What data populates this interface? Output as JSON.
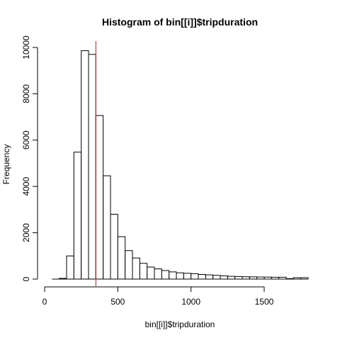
{
  "chart_data": {
    "type": "bar",
    "title": "Histogram of bin[[i]]$tripduration",
    "xlabel": "bin[[i]]$tripduration",
    "ylabel": "Frequency",
    "xlim": [
      0,
      1800
    ],
    "ylim": [
      0,
      10000
    ],
    "x_ticks": [
      0,
      500,
      1000,
      1500
    ],
    "y_ticks": [
      0,
      2000,
      4000,
      6000,
      8000,
      10000
    ],
    "bin_width": 50,
    "bins": [
      {
        "start": 50,
        "end": 100,
        "value": 0
      },
      {
        "start": 100,
        "end": 150,
        "value": 30
      },
      {
        "start": 150,
        "end": 200,
        "value": 1000
      },
      {
        "start": 200,
        "end": 250,
        "value": 5480
      },
      {
        "start": 250,
        "end": 300,
        "value": 9860
      },
      {
        "start": 300,
        "end": 350,
        "value": 9700
      },
      {
        "start": 350,
        "end": 400,
        "value": 7060
      },
      {
        "start": 400,
        "end": 450,
        "value": 4460
      },
      {
        "start": 450,
        "end": 500,
        "value": 2800
      },
      {
        "start": 500,
        "end": 550,
        "value": 1830
      },
      {
        "start": 550,
        "end": 600,
        "value": 1230
      },
      {
        "start": 600,
        "end": 650,
        "value": 910
      },
      {
        "start": 650,
        "end": 700,
        "value": 680
      },
      {
        "start": 700,
        "end": 750,
        "value": 520
      },
      {
        "start": 750,
        "end": 800,
        "value": 440
      },
      {
        "start": 800,
        "end": 850,
        "value": 370
      },
      {
        "start": 850,
        "end": 900,
        "value": 310
      },
      {
        "start": 900,
        "end": 950,
        "value": 270
      },
      {
        "start": 950,
        "end": 1000,
        "value": 250
      },
      {
        "start": 1000,
        "end": 1050,
        "value": 230
      },
      {
        "start": 1050,
        "end": 1100,
        "value": 200
      },
      {
        "start": 1100,
        "end": 1150,
        "value": 180
      },
      {
        "start": 1150,
        "end": 1200,
        "value": 160
      },
      {
        "start": 1200,
        "end": 1250,
        "value": 140
      },
      {
        "start": 1250,
        "end": 1300,
        "value": 120
      },
      {
        "start": 1300,
        "end": 1350,
        "value": 110
      },
      {
        "start": 1350,
        "end": 1400,
        "value": 100
      },
      {
        "start": 1400,
        "end": 1450,
        "value": 95
      },
      {
        "start": 1450,
        "end": 1500,
        "value": 90
      },
      {
        "start": 1500,
        "end": 1550,
        "value": 85
      },
      {
        "start": 1550,
        "end": 1600,
        "value": 80
      },
      {
        "start": 1600,
        "end": 1650,
        "value": 80
      },
      {
        "start": 1650,
        "end": 1700,
        "value": 20
      },
      {
        "start": 1700,
        "end": 1750,
        "value": 60
      },
      {
        "start": 1750,
        "end": 1800,
        "value": 60
      }
    ],
    "reference_line": {
      "x": 350,
      "color": "#b22222"
    }
  }
}
